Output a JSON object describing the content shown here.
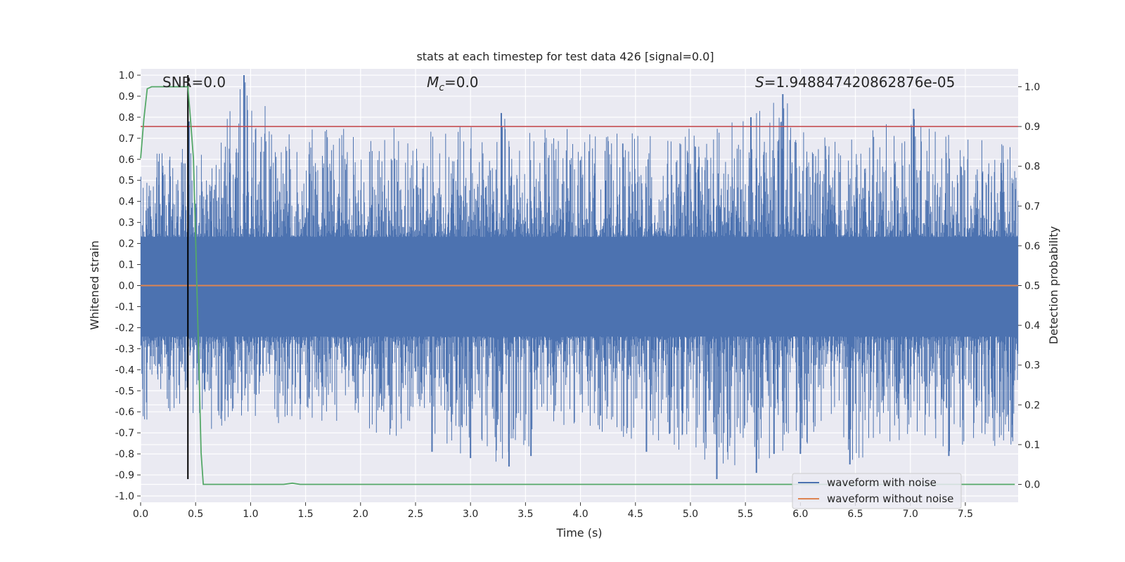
{
  "chart_data": {
    "type": "line",
    "title": "stats at each timestep for test data 426 [signal=0.0]",
    "xlabel": "Time (s)",
    "ylabel": "Whitened strain",
    "y2label": "Detection probability",
    "xlim": [
      0.0,
      7.98
    ],
    "ylim": [
      -1.03,
      1.03
    ],
    "y2lim": [
      -0.045,
      1.045
    ],
    "x_ticks": [
      "0.0",
      "0.5",
      "1.0",
      "1.5",
      "2.0",
      "2.5",
      "3.0",
      "3.5",
      "4.0",
      "4.5",
      "5.0",
      "5.5",
      "6.0",
      "6.5",
      "7.0",
      "7.5"
    ],
    "y_ticks": [
      "1.0",
      "0.9",
      "0.8",
      "0.7",
      "0.6",
      "0.5",
      "0.4",
      "0.3",
      "0.2",
      "0.1",
      "0.0",
      "-0.1",
      "-0.2",
      "-0.3",
      "-0.4",
      "-0.5",
      "-0.6",
      "-0.7",
      "-0.8",
      "-0.9",
      "-1.0"
    ],
    "y2_ticks": [
      "1.0",
      "0.9",
      "0.8",
      "0.7",
      "0.6",
      "0.5",
      "0.4",
      "0.3",
      "0.2",
      "0.1",
      "0.0"
    ],
    "grid": true,
    "legend_position": "lower-right",
    "annotations": {
      "snr": "SNR=0.0",
      "mc_symbol": "M",
      "mc_sub": "c",
      "mc_value": "=0.0",
      "s_symbol": "S",
      "s_value": "=1.948847420862876e-05"
    },
    "series": [
      {
        "name": "waveform with noise",
        "color": "#4c72b0",
        "description_type": "noise band",
        "envelope_x": [
          0.0,
          0.3,
          0.6,
          0.94,
          1.4,
          1.6,
          1.9,
          2.2,
          2.5,
          2.8,
          3.1,
          3.28,
          3.6,
          3.9,
          4.2,
          4.5,
          4.8,
          5.1,
          5.5,
          5.84,
          6.1,
          6.5,
          7.03,
          7.4,
          7.98
        ],
        "envelope_upper": [
          0.6,
          0.74,
          0.62,
          1.0,
          0.7,
          0.78,
          0.78,
          0.74,
          0.78,
          0.74,
          0.8,
          0.82,
          0.74,
          0.76,
          0.72,
          0.74,
          0.7,
          0.78,
          0.8,
          0.91,
          0.72,
          0.7,
          0.84,
          0.7,
          0.68
        ],
        "envelope_lower": [
          -0.65,
          -0.6,
          -0.7,
          -0.62,
          -0.72,
          -0.68,
          -0.64,
          -0.78,
          -0.7,
          -0.8,
          -0.82,
          -0.86,
          -0.74,
          -0.66,
          -0.7,
          -0.74,
          -0.75,
          -0.92,
          -0.89,
          -0.8,
          -0.76,
          -0.85,
          -0.7,
          -0.81,
          -0.75
        ],
        "dense_upper": 0.42,
        "dense_lower": -0.44,
        "spikes_up": [
          [
            0.94,
            1.0
          ],
          [
            5.84,
            0.91
          ],
          [
            7.03,
            0.84
          ],
          [
            3.28,
            0.82
          ],
          [
            5.55,
            0.8
          ],
          [
            0.44,
            0.78
          ]
        ],
        "spikes_down": [
          [
            5.24,
            -0.92
          ],
          [
            5.6,
            -0.89
          ],
          [
            3.35,
            -0.86
          ],
          [
            6.45,
            -0.85
          ],
          [
            3.0,
            -0.82
          ],
          [
            7.35,
            -0.81
          ],
          [
            3.55,
            -0.81
          ],
          [
            6.0,
            -0.8
          ],
          [
            5.76,
            -0.8
          ],
          [
            4.6,
            -0.79
          ],
          [
            2.65,
            -0.79
          ]
        ]
      },
      {
        "name": "waveform without noise",
        "color": "#dd8452",
        "x": [
          0.0,
          7.98
        ],
        "y": [
          0.0,
          0.0
        ]
      },
      {
        "color": "#55a868",
        "axis": "right",
        "x": [
          0.0,
          0.03,
          0.06,
          0.1,
          0.15,
          0.2,
          0.3,
          0.43,
          0.45,
          0.48,
          0.5,
          0.53,
          0.55,
          0.57,
          0.6,
          0.8,
          1.0,
          1.2,
          1.3,
          1.38,
          1.45,
          1.6,
          2.0,
          3.0,
          4.0,
          5.0,
          6.0,
          7.0,
          7.95
        ],
        "y": [
          0.82,
          0.92,
          0.995,
          1.0,
          1.0,
          1.0,
          1.0,
          1.0,
          0.93,
          0.82,
          0.62,
          0.3,
          0.08,
          0.0,
          0.0,
          0.0,
          0.0,
          0.0,
          0.0,
          0.003,
          0.0,
          0.0,
          0.0,
          0.0,
          0.0,
          0.0,
          0.0,
          0.0,
          0.0
        ]
      }
    ],
    "threshold_line": {
      "axis": "right",
      "y": 0.9,
      "color": "#c44e52"
    },
    "marker_line": {
      "x": 0.43,
      "y_from": -0.92,
      "y_to": 1.0,
      "color": "#000000"
    }
  }
}
